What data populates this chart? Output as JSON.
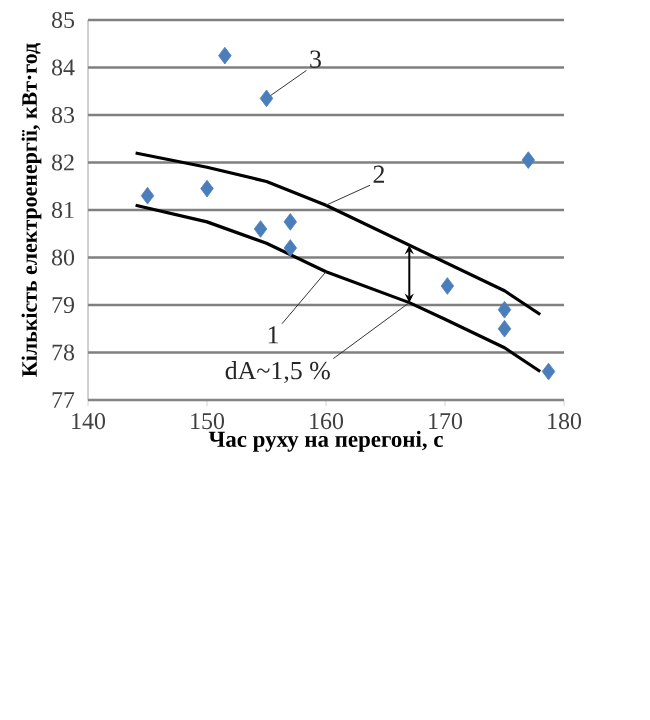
{
  "chart_data": {
    "type": "scatter",
    "xlabel": "Час руху на перегоні, с",
    "ylabel": "Кількість електроенергії, кВт·год",
    "xlim": [
      140,
      180
    ],
    "xticks": [
      140,
      150,
      160,
      170,
      180
    ],
    "ylim": [
      77,
      85
    ],
    "yticks": [
      77,
      78,
      79,
      80,
      81,
      82,
      83,
      84,
      85
    ],
    "grid": "y",
    "series": [
      {
        "marker": "diamond",
        "color": "#4a7ebb",
        "x": [
          145,
          150,
          151.5,
          155,
          154.5,
          157,
          157,
          170.2,
          175,
          175,
          177,
          178.7
        ],
        "values": [
          81.3,
          81.45,
          84.25,
          83.35,
          80.6,
          80.75,
          80.2,
          79.4,
          78.9,
          78.5,
          82.05,
          77.6
        ]
      },
      {
        "type": "line",
        "color": "#000000",
        "x": [
          144,
          150,
          155,
          160,
          165,
          170,
          175,
          178
        ],
        "values": [
          82.2,
          81.9,
          81.6,
          81.1,
          80.5,
          79.9,
          79.3,
          78.8
        ]
      },
      {
        "type": "line",
        "color": "#000000",
        "x": [
          144,
          150,
          155,
          160,
          167,
          170,
          175,
          178
        ],
        "values": [
          81.1,
          80.75,
          80.3,
          79.7,
          79.05,
          78.7,
          78.1,
          77.6
        ]
      }
    ],
    "annotations": [
      {
        "text": "1",
        "x": 160,
        "y": 79.7
      },
      {
        "text": "2",
        "x": 160,
        "y": 81.1
      },
      {
        "text": "3",
        "x": 155,
        "y": 83.35
      },
      {
        "text": "dA~1,5 %",
        "x": 167,
        "y": 79.05
      }
    ]
  }
}
